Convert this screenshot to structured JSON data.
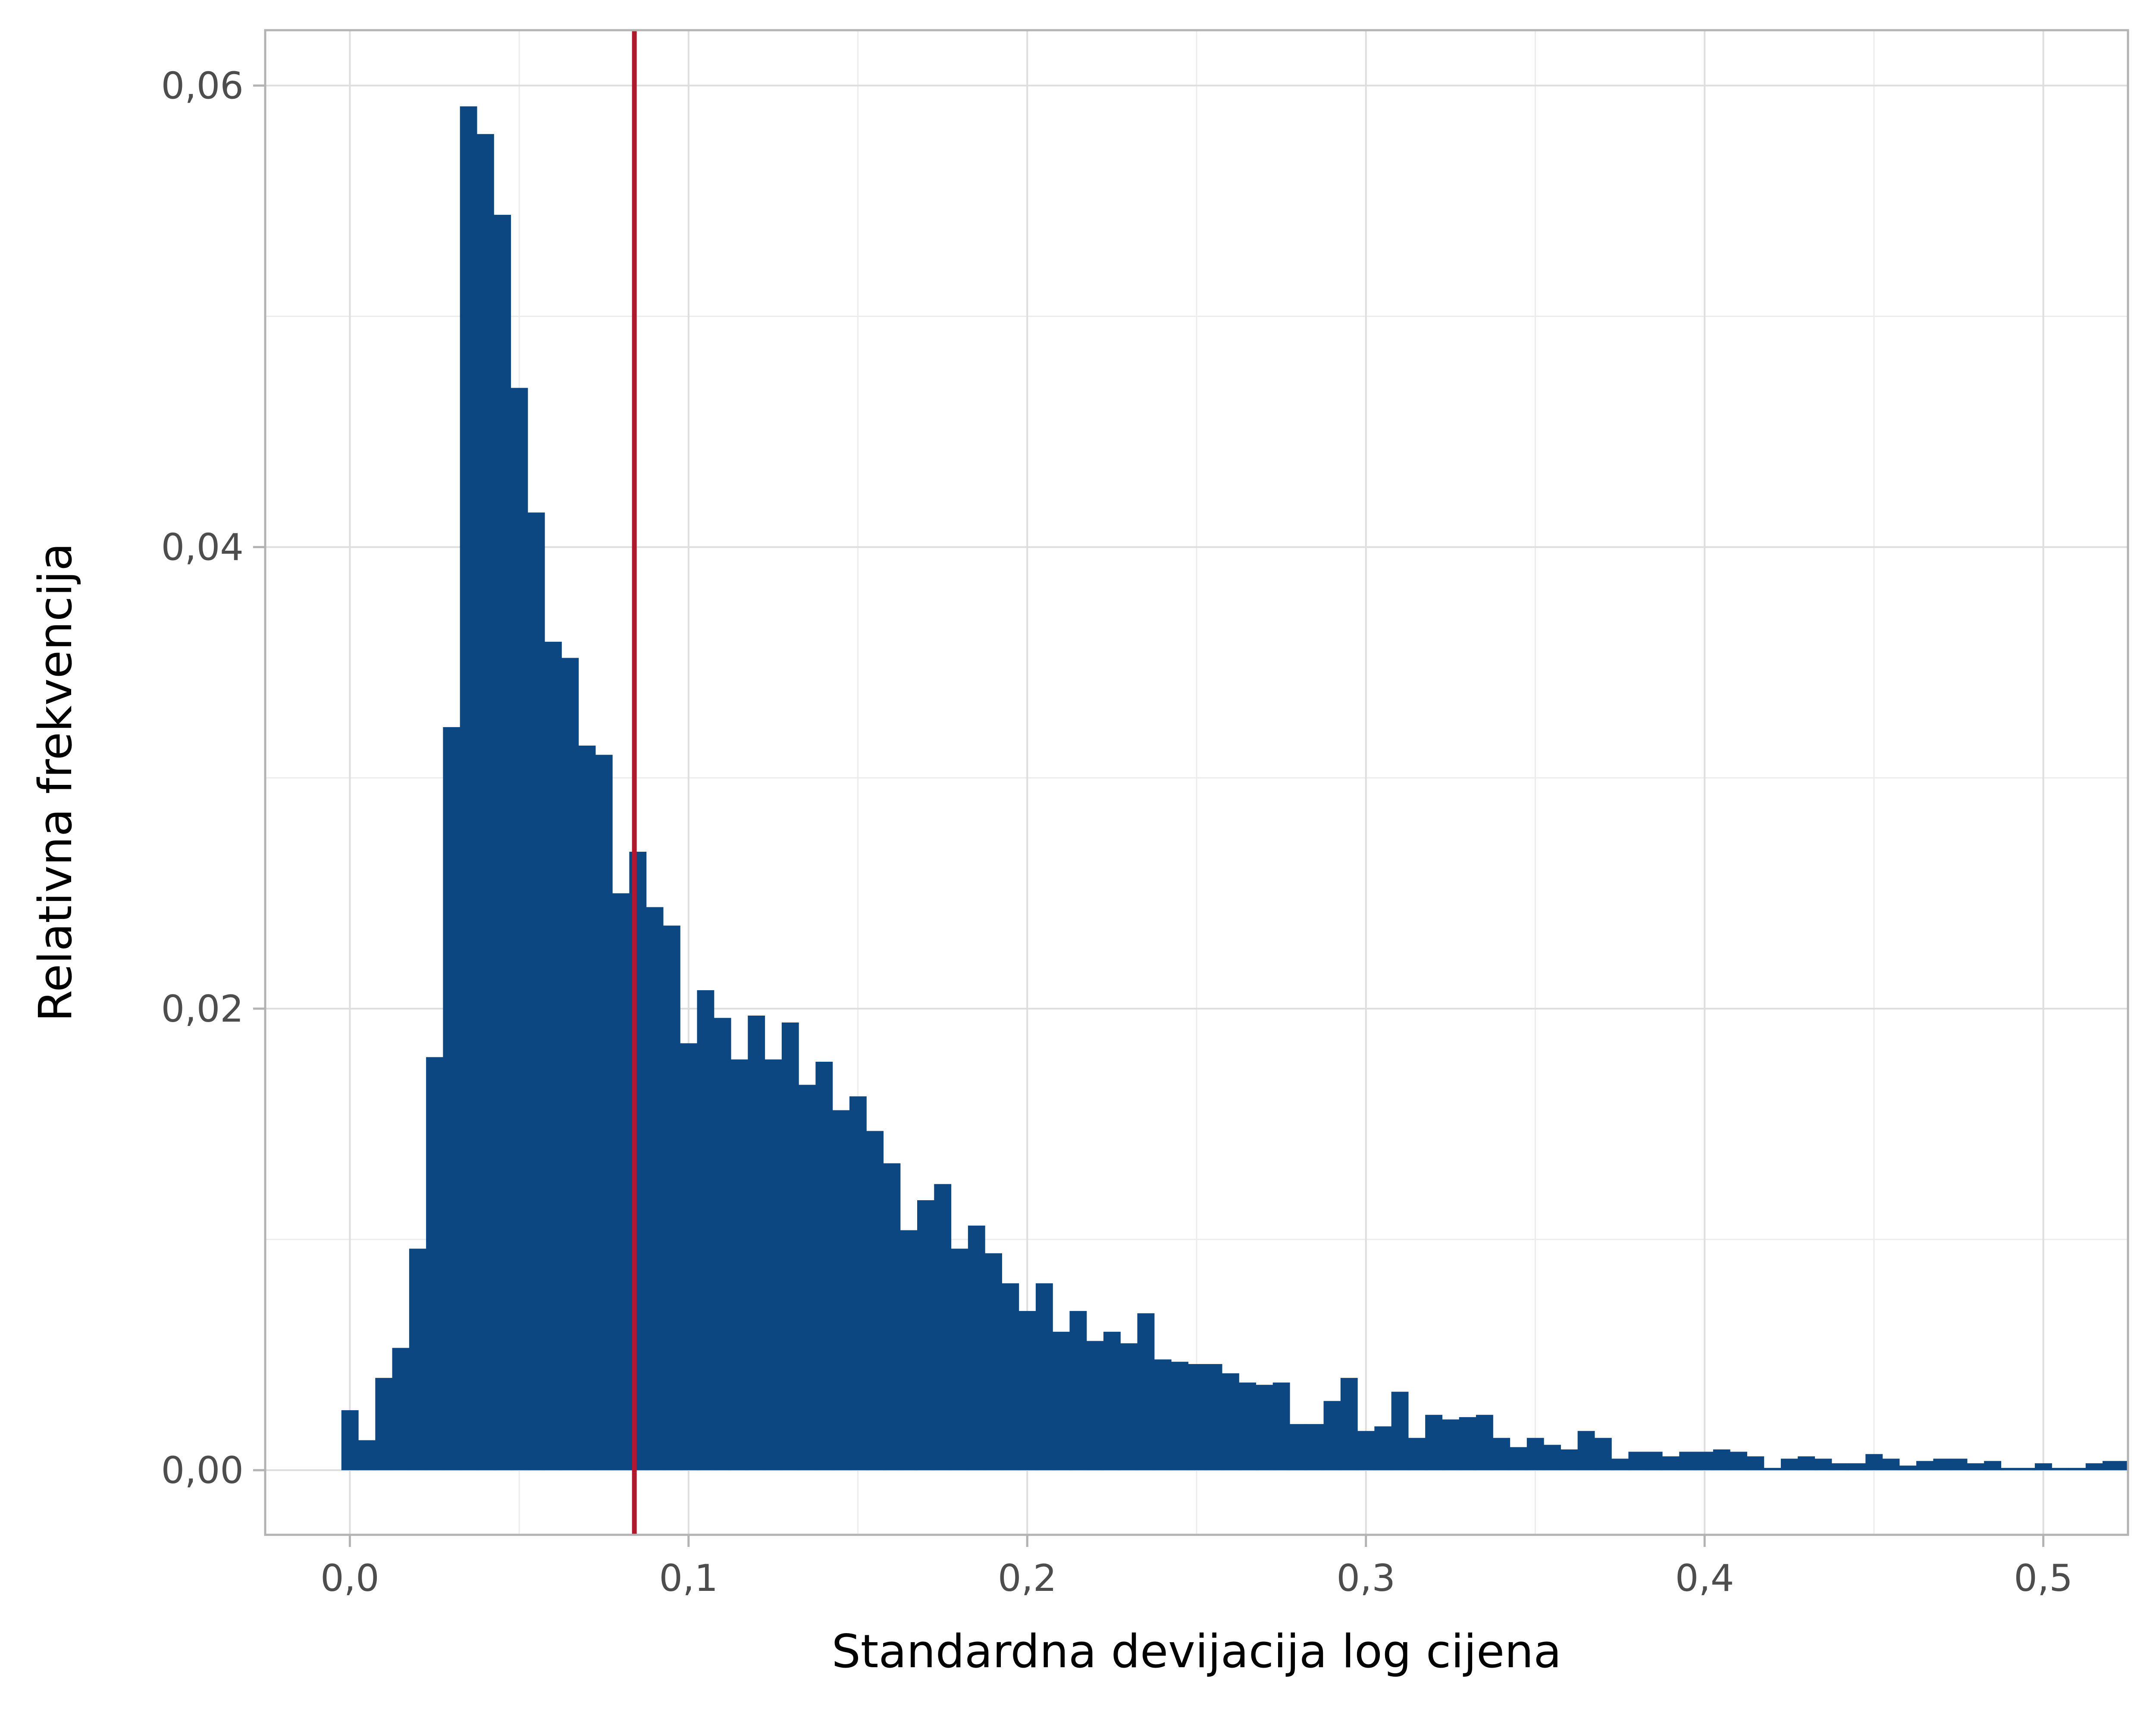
{
  "chart_data": {
    "type": "bar",
    "title": "",
    "xlabel": "Standardna devijacija log cijena",
    "ylabel": "Relativna frekvencija",
    "xlim": [
      -0.025,
      0.525
    ],
    "ylim": [
      -0.0028,
      0.0624
    ],
    "x_ticks": [
      {
        "value": 0.0,
        "label": "0,0"
      },
      {
        "value": 0.1,
        "label": "0,1"
      },
      {
        "value": 0.2,
        "label": "0,2"
      },
      {
        "value": 0.3,
        "label": "0,3"
      },
      {
        "value": 0.4,
        "label": "0,4"
      },
      {
        "value": 0.5,
        "label": "0,5"
      }
    ],
    "y_ticks": [
      {
        "value": 0.0,
        "label": "0,00"
      },
      {
        "value": 0.02,
        "label": "0,02"
      },
      {
        "value": 0.04,
        "label": "0,04"
      },
      {
        "value": 0.06,
        "label": "0,06"
      }
    ],
    "grid": true,
    "bin_width": 0.005,
    "bin_start": -0.0025,
    "values": [
      0.0026,
      0.0013,
      0.004,
      0.0053,
      0.0096,
      0.0179,
      0.0322,
      0.0591,
      0.0579,
      0.0544,
      0.0469,
      0.0415,
      0.0359,
      0.0352,
      0.0314,
      0.031,
      0.025,
      0.0268,
      0.0244,
      0.0236,
      0.0185,
      0.0208,
      0.0196,
      0.0178,
      0.0197,
      0.0178,
      0.0194,
      0.0167,
      0.0177,
      0.0156,
      0.0162,
      0.0147,
      0.0133,
      0.0104,
      0.0117,
      0.0124,
      0.0096,
      0.0106,
      0.0094,
      0.0081,
      0.0069,
      0.0081,
      0.006,
      0.0069,
      0.0056,
      0.006,
      0.0055,
      0.0068,
      0.0048,
      0.0047,
      0.0046,
      0.0046,
      0.0042,
      0.0038,
      0.0037,
      0.0038,
      0.002,
      0.002,
      0.003,
      0.004,
      0.0017,
      0.0019,
      0.0034,
      0.0014,
      0.0024,
      0.0022,
      0.0023,
      0.0024,
      0.0014,
      0.001,
      0.0014,
      0.0011,
      0.0009,
      0.0017,
      0.0014,
      0.0005,
      0.0008,
      0.0008,
      0.0006,
      0.0008,
      0.0008,
      0.0009,
      0.0008,
      0.0006,
      0.0001,
      0.0005,
      0.0006,
      0.0005,
      0.0003,
      0.0003,
      0.0007,
      0.0005,
      0.0002,
      0.0004,
      0.0005,
      0.0005,
      0.0003,
      0.0004,
      0.0001,
      0.0001,
      0.0003,
      0.0001,
      0.0001,
      0.0003,
      0.0004,
      0.0004
    ],
    "vline": {
      "x": 0.084,
      "color": "#b2182b"
    },
    "bar_color": "#0c4782"
  }
}
